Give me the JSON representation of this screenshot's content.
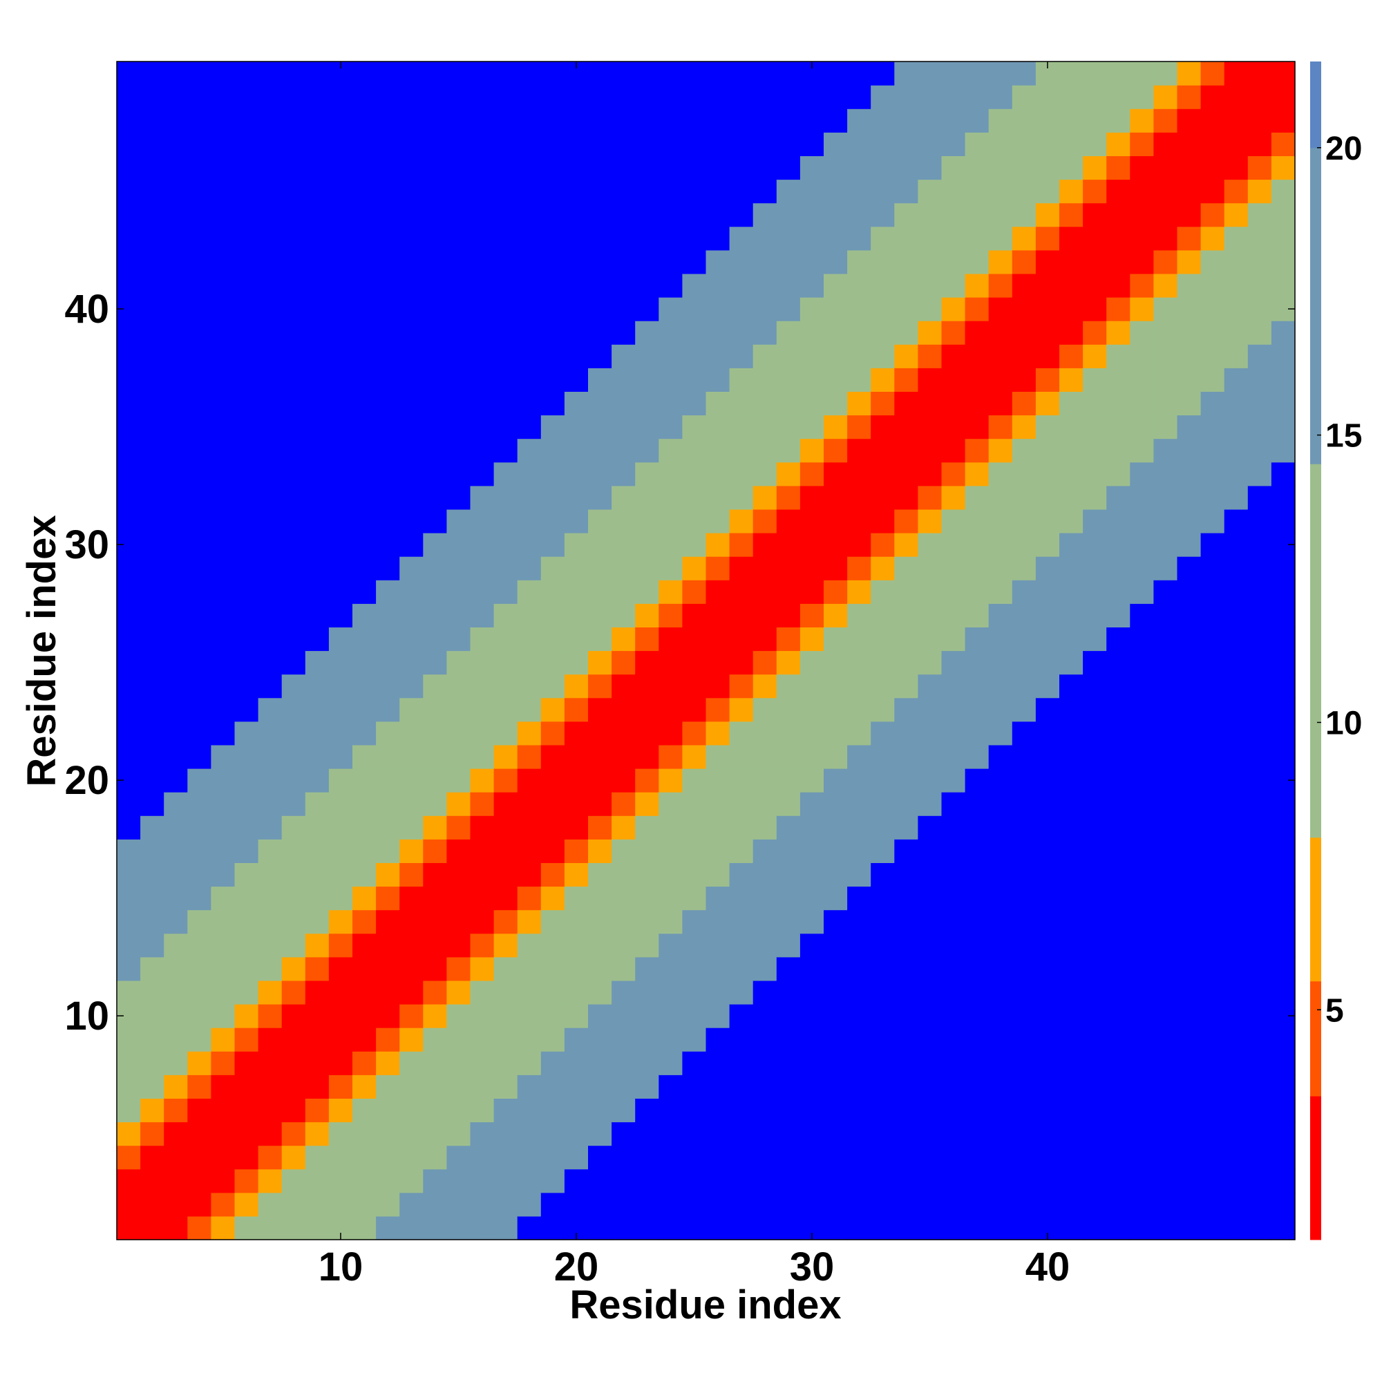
{
  "chart_data": {
    "type": "heatmap",
    "title": "",
    "xlabel": "Residue index",
    "ylabel": "Residue index",
    "n_residues": 50,
    "xlim": [
      0.5,
      50.5
    ],
    "ylim": [
      0.5,
      50.5
    ],
    "x_ticks": [
      10,
      20,
      30,
      40
    ],
    "y_ticks": [
      10,
      20,
      30,
      40
    ],
    "colorbar": {
      "ticks": [
        5,
        10,
        15,
        20
      ],
      "range": [
        1,
        21.5
      ],
      "colors": [
        "#ff0000",
        "#ff5500",
        "#ffa500",
        "#9dbe8c",
        "#6f98b4",
        "#5b86c3",
        "#0000ff"
      ],
      "bounds": [
        1,
        3.5,
        5.5,
        8,
        14.5,
        20,
        21.5
      ]
    },
    "grid": false,
    "legend": "colorbar-right",
    "values_note": "distance map: cell value = |i - j| near diagonal, saturated (~21) far from diagonal"
  }
}
